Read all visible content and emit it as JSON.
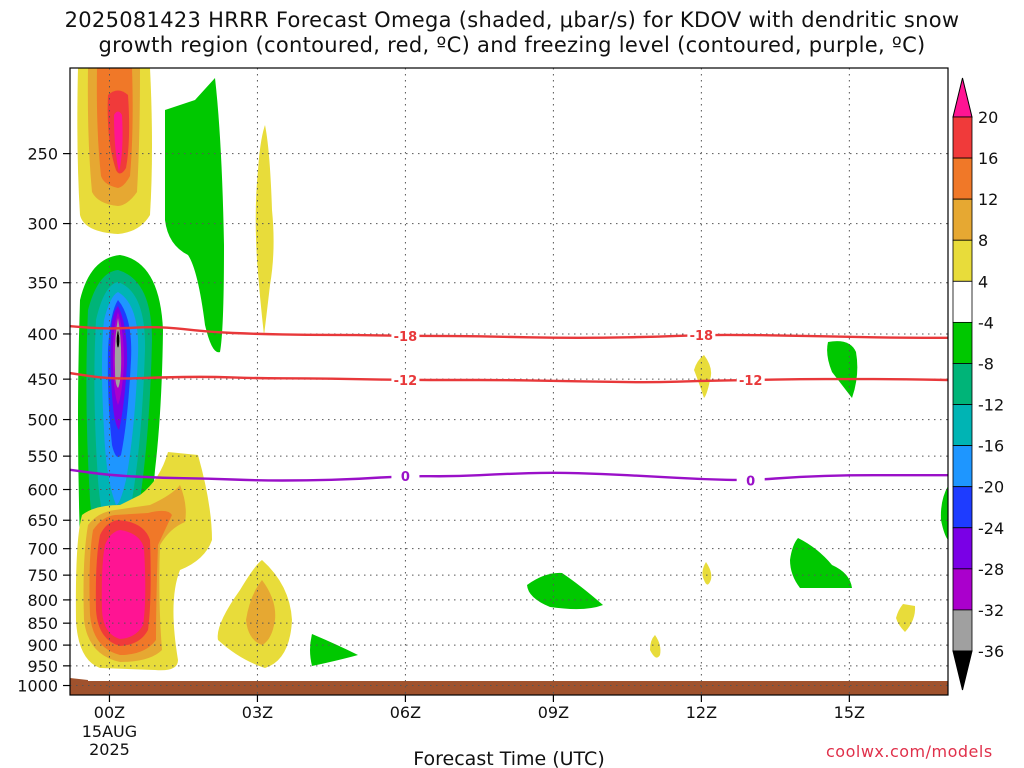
{
  "title": {
    "line1": "2025081423 HRRR Forecast Omega (shaded, μbar/s) for KDOV with dendritic snow",
    "line2": "growth region (contoured, red, ºC) and freezing level (contoured, purple, ºC)"
  },
  "credit": "coolwx.com/models",
  "chart_data": {
    "type": "contour",
    "title": "2025081423 HRRR Forecast Omega (shaded, μbar/s) for KDOV with dendritic snow growth region (contoured, red, ºC) and freezing level (contoured, purple, ºC)",
    "xlabel": "Forecast Time (UTC)",
    "ylabel": "",
    "x_range_hours": [
      -0.8,
      17
    ],
    "y_range_hpa": [
      1025,
      200
    ],
    "y_scale": "log-pressure",
    "x_ticks": [
      {
        "hour": 0,
        "label": "00Z",
        "sub1": "15AUG",
        "sub2": "2025"
      },
      {
        "hour": 3,
        "label": "03Z"
      },
      {
        "hour": 6,
        "label": "06Z"
      },
      {
        "hour": 9,
        "label": "09Z"
      },
      {
        "hour": 12,
        "label": "12Z"
      },
      {
        "hour": 15,
        "label": "15Z"
      }
    ],
    "y_ticks": [
      250,
      300,
      350,
      400,
      450,
      500,
      550,
      600,
      650,
      700,
      750,
      800,
      850,
      900,
      950,
      1000
    ],
    "grid": true,
    "colorbar": {
      "labels": [
        "20",
        "16",
        "12",
        "8",
        "4",
        "-4",
        "-8",
        "-12",
        "-16",
        "-20",
        "-24",
        "-28",
        "-32",
        "-36"
      ],
      "colors": [
        "#ff1493",
        "#f03a3a",
        "#f07828",
        "#e6a832",
        "#e8dc3a",
        "#ffffff",
        "#00c800",
        "#00b478",
        "#00b4b4",
        "#1e96ff",
        "#1e3cff",
        "#7a00e6",
        "#aa00cc",
        "#a0a0a0",
        "#000000"
      ]
    },
    "contours": [
      {
        "value": "-18",
        "color": "#e8383a",
        "points": [
          [
            -0.8,
            392
          ],
          [
            0,
            395
          ],
          [
            1,
            392
          ],
          [
            2,
            398
          ],
          [
            3,
            400
          ],
          [
            4,
            401
          ],
          [
            5,
            401
          ],
          [
            6,
            402
          ],
          [
            7,
            402
          ],
          [
            8,
            403
          ],
          [
            9,
            404
          ],
          [
            10,
            404
          ],
          [
            11,
            403
          ],
          [
            12,
            401
          ],
          [
            13,
            401
          ],
          [
            14,
            402
          ],
          [
            15,
            403
          ],
          [
            16,
            404
          ],
          [
            17,
            404
          ]
        ],
        "label_hours": [
          6,
          12
        ]
      },
      {
        "value": "-12",
        "color": "#e8383a",
        "points": [
          [
            -0.8,
            443
          ],
          [
            0,
            450
          ],
          [
            1,
            448
          ],
          [
            2,
            447
          ],
          [
            3,
            449
          ],
          [
            4,
            449
          ],
          [
            5,
            450
          ],
          [
            6,
            451
          ],
          [
            7,
            451
          ],
          [
            8,
            451
          ],
          [
            9,
            452
          ],
          [
            10,
            453
          ],
          [
            11,
            454
          ],
          [
            12,
            452
          ],
          [
            13,
            451
          ],
          [
            14,
            450
          ],
          [
            15,
            450
          ],
          [
            16,
            450
          ],
          [
            17,
            451
          ]
        ],
        "label_hours": [
          6,
          13
        ]
      },
      {
        "value": "0",
        "color": "#9a10c8",
        "points": [
          [
            -0.8,
            570
          ],
          [
            0,
            578
          ],
          [
            1,
            582
          ],
          [
            2,
            583
          ],
          [
            3,
            586
          ],
          [
            4,
            586
          ],
          [
            5,
            584
          ],
          [
            6,
            579
          ],
          [
            7,
            580
          ],
          [
            8,
            576
          ],
          [
            9,
            574
          ],
          [
            10,
            576
          ],
          [
            11,
            580
          ],
          [
            12,
            584
          ],
          [
            13,
            586
          ],
          [
            14,
            580
          ],
          [
            15,
            578
          ],
          [
            16,
            578
          ],
          [
            17,
            578
          ]
        ],
        "label_hours": [
          6,
          13
        ]
      }
    ]
  }
}
